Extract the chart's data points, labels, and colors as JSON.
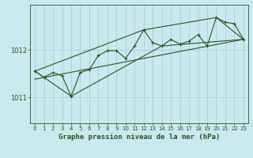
{
  "title": "Graphe pression niveau de la mer (hPa)",
  "bg_color": "#cce8ef",
  "line_color": "#1a5c1a",
  "grid_color": "#a8cdd6",
  "x_ticks": [
    0,
    1,
    2,
    3,
    4,
    5,
    6,
    7,
    8,
    9,
    10,
    11,
    12,
    13,
    14,
    15,
    16,
    17,
    18,
    19,
    20,
    21,
    22,
    23
  ],
  "y_ticks": [
    1011,
    1012
  ],
  "ylim": [
    1010.45,
    1012.95
  ],
  "xlim": [
    -0.5,
    23.5
  ],
  "pressure_data": [
    [
      0,
      1011.55
    ],
    [
      1,
      1011.42
    ],
    [
      2,
      1011.52
    ],
    [
      3,
      1011.45
    ],
    [
      4,
      1011.02
    ],
    [
      5,
      1011.52
    ],
    [
      6,
      1011.58
    ],
    [
      7,
      1011.88
    ],
    [
      8,
      1011.98
    ],
    [
      9,
      1011.98
    ],
    [
      10,
      1011.82
    ],
    [
      11,
      1012.08
    ],
    [
      12,
      1012.42
    ],
    [
      13,
      1012.15
    ],
    [
      14,
      1012.08
    ],
    [
      15,
      1012.22
    ],
    [
      16,
      1012.12
    ],
    [
      17,
      1012.18
    ],
    [
      18,
      1012.32
    ],
    [
      19,
      1012.08
    ],
    [
      20,
      1012.68
    ],
    [
      21,
      1012.58
    ],
    [
      22,
      1012.55
    ],
    [
      23,
      1012.22
    ]
  ],
  "trend_line": [
    [
      0,
      1011.38
    ],
    [
      23,
      1012.22
    ]
  ],
  "envelope_top": [
    [
      0,
      1011.55
    ],
    [
      12,
      1012.42
    ],
    [
      20,
      1012.68
    ],
    [
      23,
      1012.22
    ]
  ],
  "envelope_bottom": [
    [
      0,
      1011.55
    ],
    [
      4,
      1011.02
    ],
    [
      14,
      1012.08
    ],
    [
      23,
      1012.22
    ]
  ]
}
